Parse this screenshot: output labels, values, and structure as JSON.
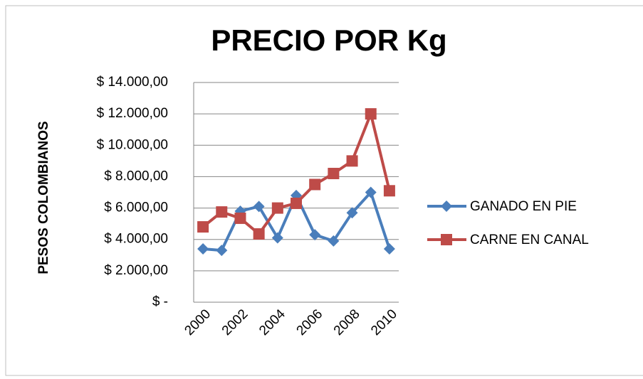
{
  "chart_data": {
    "type": "line",
    "title": "PRECIO POR Kg",
    "y_label": "PESOS COLOMBIANOS",
    "categories": [
      "2000",
      null,
      "2002",
      null,
      "2004",
      null,
      "2006",
      null,
      "2008",
      null,
      "2010"
    ],
    "series": [
      {
        "name": "GANADO EN PIE",
        "color": "#4a7ebb",
        "marker": "diamond",
        "values": [
          3400,
          3300,
          5800,
          6100,
          4100,
          6800,
          4300,
          3900,
          5700,
          7000,
          3400
        ]
      },
      {
        "name": "CARNE EN CANAL",
        "color": "#be4b48",
        "marker": "square",
        "values": [
          4800,
          5750,
          5350,
          4350,
          6000,
          6300,
          7500,
          8200,
          9000,
          12000,
          7100
        ]
      }
    ],
    "ylim": [
      0,
      14000
    ],
    "yticks": [
      {
        "value": 0,
        "label": "$ -"
      },
      {
        "value": 2000,
        "label": "$ 2.000,00"
      },
      {
        "value": 4000,
        "label": "$ 4.000,00"
      },
      {
        "value": 6000,
        "label": "$ 6.000,00"
      },
      {
        "value": 8000,
        "label": "$ 8.000,00"
      },
      {
        "value": 10000,
        "label": "$ 10.000,00"
      },
      {
        "value": 12000,
        "label": "$ 12.000,00"
      },
      {
        "value": 14000,
        "label": "$ 14.000,00"
      }
    ],
    "grid": true,
    "legend": "right"
  }
}
